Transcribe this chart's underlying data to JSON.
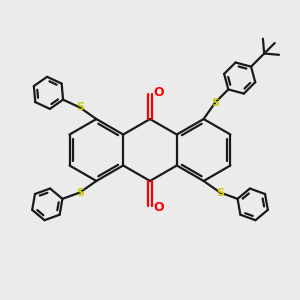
{
  "bg_color": "#ebebeb",
  "bond_color": "#1a1a1a",
  "sulfur_color": "#cccc00",
  "oxygen_color": "#ff0000",
  "bond_lw": 1.6,
  "figsize": [
    3.0,
    3.0
  ],
  "dpi": 100,
  "xlim": [
    -4.8,
    4.8
  ],
  "ylim": [
    -4.8,
    4.8
  ]
}
